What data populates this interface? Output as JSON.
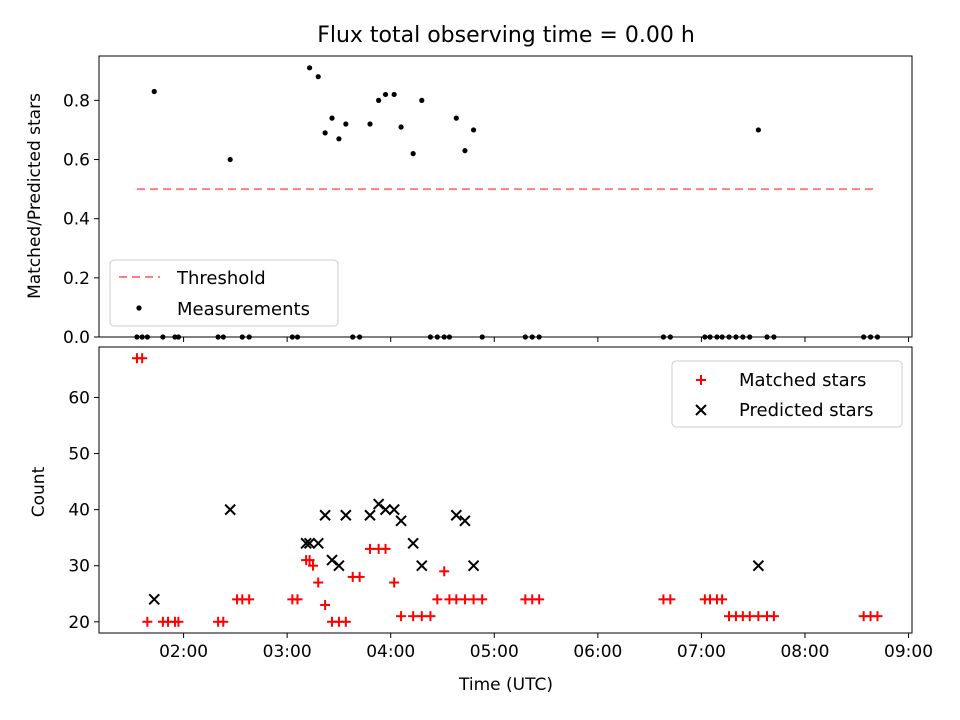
{
  "chart_data": [
    {
      "type": "scatter",
      "title": "Flux total observing time = 0.00 h",
      "ylabel": "Matched/Predicted stars",
      "xlabel": "",
      "ylim": [
        0,
        0.95
      ],
      "xlim": [
        "01:11",
        "09:02"
      ],
      "yticks": [
        "0.0",
        "0.2",
        "0.4",
        "0.6",
        "0.8"
      ],
      "legend_position": "lower-left",
      "threshold": {
        "name": "Threshold",
        "value": 0.5,
        "x": [
          "01:33",
          "08:42"
        ],
        "color": "#ff7f7f",
        "style": "dashed"
      },
      "series": [
        {
          "name": "Measurements",
          "color": "#000000",
          "marker": "dot",
          "x": [
            "01:43",
            "02:27",
            "03:13",
            "03:18",
            "03:22",
            "03:26",
            "03:30",
            "03:34",
            "03:48",
            "03:53",
            "03:57",
            "04:02",
            "04:06",
            "04:13",
            "04:18",
            "04:38",
            "04:43",
            "04:48",
            "07:33",
            "01:33",
            "01:36",
            "01:39",
            "01:48",
            "01:55",
            "01:57",
            "02:20",
            "02:23",
            "02:34",
            "02:38",
            "03:03",
            "03:06",
            "03:38",
            "03:42",
            "04:23",
            "04:27",
            "04:31",
            "04:34",
            "04:53",
            "05:18",
            "05:22",
            "05:26",
            "06:38",
            "06:42",
            "07:02",
            "07:05",
            "07:09",
            "07:12",
            "07:16",
            "07:20",
            "07:24",
            "07:28",
            "07:38",
            "07:42",
            "08:34",
            "08:38",
            "08:42"
          ],
          "y": [
            0.83,
            0.6,
            0.91,
            0.88,
            0.69,
            0.74,
            0.67,
            0.72,
            0.72,
            0.8,
            0.82,
            0.82,
            0.71,
            0.62,
            0.8,
            0.74,
            0.63,
            0.7,
            0.7,
            0,
            0,
            0,
            0,
            0,
            0,
            0,
            0,
            0,
            0,
            0,
            0,
            0,
            0,
            0,
            0,
            0,
            0,
            0,
            0,
            0,
            0,
            0,
            0,
            0,
            0,
            0,
            0,
            0,
            0,
            0,
            0,
            0,
            0,
            0,
            0,
            0
          ]
        }
      ]
    },
    {
      "type": "scatter",
      "title": "",
      "ylabel": "Count",
      "xlabel": "Time (UTC)",
      "ylim": [
        18,
        69
      ],
      "xlim": [
        "01:11",
        "09:02"
      ],
      "yticks": [
        "20",
        "30",
        "40",
        "50",
        "60"
      ],
      "xticks": [
        "02:00",
        "03:00",
        "04:00",
        "05:00",
        "06:00",
        "07:00",
        "08:00",
        "09:00"
      ],
      "legend_position": "upper-right",
      "series": [
        {
          "name": "Matched stars",
          "color": "#ff0000",
          "marker": "plus",
          "x": [
            "01:33",
            "01:36",
            "01:39",
            "01:48",
            "01:51",
            "01:55",
            "01:57",
            "02:20",
            "02:23",
            "02:31",
            "02:34",
            "02:38",
            "03:03",
            "03:06",
            "03:11",
            "03:13",
            "03:15",
            "03:18",
            "03:22",
            "03:26",
            "03:30",
            "03:34",
            "03:38",
            "03:42",
            "03:48",
            "03:53",
            "03:57",
            "04:02",
            "04:06",
            "04:13",
            "04:18",
            "04:23",
            "04:27",
            "04:31",
            "04:34",
            "04:38",
            "04:43",
            "04:48",
            "04:53",
            "05:18",
            "05:22",
            "05:26",
            "06:38",
            "06:42",
            "07:02",
            "07:05",
            "07:09",
            "07:12",
            "07:16",
            "07:20",
            "07:24",
            "07:28",
            "07:33",
            "07:38",
            "07:42",
            "08:34",
            "08:38",
            "08:42"
          ],
          "y": [
            67,
            67,
            20,
            20,
            20,
            20,
            20,
            20,
            20,
            24,
            24,
            24,
            24,
            24,
            31,
            31,
            30,
            27,
            23,
            20,
            20,
            20,
            28,
            28,
            33,
            33,
            33,
            27,
            21,
            21,
            21,
            21,
            24,
            29,
            24,
            24,
            24,
            24,
            24,
            24,
            24,
            24,
            24,
            24,
            24,
            24,
            24,
            24,
            21,
            21,
            21,
            21,
            21,
            21,
            21,
            21,
            21,
            21
          ]
        },
        {
          "name": "Predicted stars",
          "color": "#000000",
          "marker": "x",
          "x": [
            "01:43",
            "02:27",
            "03:11",
            "03:13",
            "03:18",
            "03:22",
            "03:26",
            "03:30",
            "03:34",
            "03:48",
            "03:53",
            "03:57",
            "04:02",
            "04:06",
            "04:13",
            "04:18",
            "04:38",
            "04:43",
            "04:48",
            "07:33"
          ],
          "y": [
            24,
            40,
            34,
            34,
            34,
            39,
            31,
            30,
            39,
            39,
            41,
            40,
            40,
            38,
            34,
            30,
            39,
            38,
            30,
            30
          ]
        }
      ]
    }
  ]
}
